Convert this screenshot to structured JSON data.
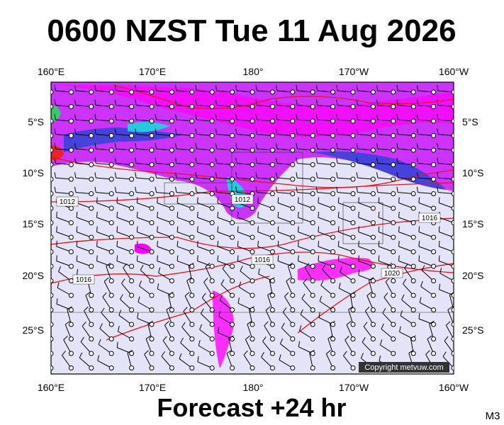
{
  "title": "0600 NZST Tue 11 Aug 2026",
  "map": {
    "lon_labels": [
      "160°E",
      "170°E",
      "180°",
      "170°W",
      "160°W"
    ],
    "lat_labels": [
      "5°S",
      "10°S",
      "15°S",
      "20°S",
      "25°S"
    ],
    "isobar_labels": [
      "1012",
      "1012",
      "1016",
      "1016",
      "1016",
      "1020"
    ],
    "copyright": "Copyright metvuw.com"
  },
  "footer": "Forecast +24 hr",
  "model_label": "M3"
}
